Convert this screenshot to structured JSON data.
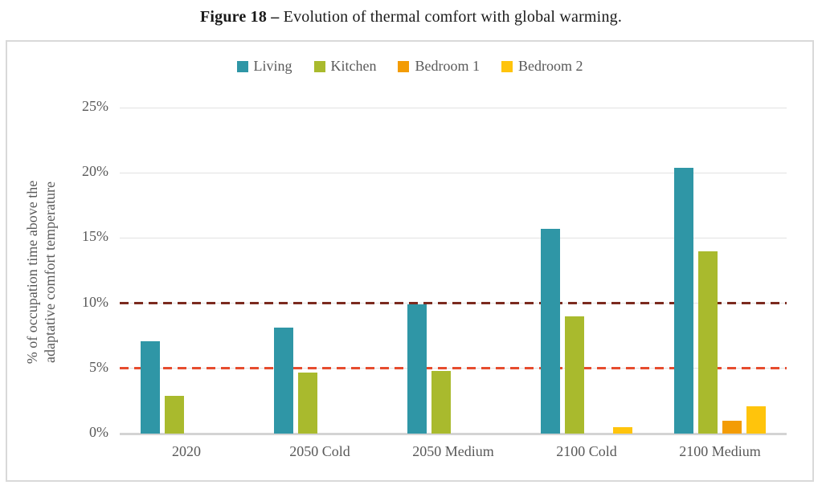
{
  "title": {
    "prefix": "Figure 18 –",
    "caption": "Evolution of thermal comfort with global warming."
  },
  "chart_data": {
    "type": "bar",
    "title": "",
    "categories": [
      "2020",
      "2050 Cold",
      "2050 Medium",
      "2100 Cold",
      "2100 Medium"
    ],
    "series": [
      {
        "name": "Living",
        "color": "#2F96A6",
        "values": [
          7.1,
          8.1,
          9.9,
          15.7,
          20.4
        ]
      },
      {
        "name": "Kitchen",
        "color": "#A9BA2D",
        "values": [
          2.9,
          4.7,
          4.8,
          9.0,
          14.0
        ]
      },
      {
        "name": "Bedroom 1",
        "color": "#F39C05",
        "values": [
          0,
          0,
          0,
          0,
          1.0
        ]
      },
      {
        "name": "Bedroom 2",
        "color": "#FFC40C",
        "values": [
          0,
          0,
          0,
          0.5,
          2.1
        ]
      }
    ],
    "xlabel": "",
    "ylabel": "% of occupation time above the adaptative comfort temperature",
    "ylabel_lines": [
      "% of occupation time above the",
      "adaptative comfort temperature"
    ],
    "yticks": [
      "0%",
      "5%",
      "10%",
      "15%",
      "20%",
      "25%"
    ],
    "ylim": [
      0,
      25
    ],
    "grid": true,
    "legend_position": "top",
    "reference_lines": [
      {
        "value": 10,
        "style": "dashed",
        "color": "#7B2A1F"
      },
      {
        "value": 5,
        "style": "dashed",
        "color": "#E64C2E"
      }
    ]
  },
  "colors": {
    "chart_border": "#D9D9D9",
    "gridline": "#E2E2E2",
    "axis_line": "#D4D4D4",
    "axis_text": "#595959",
    "title_text": "#1A1A1A"
  }
}
